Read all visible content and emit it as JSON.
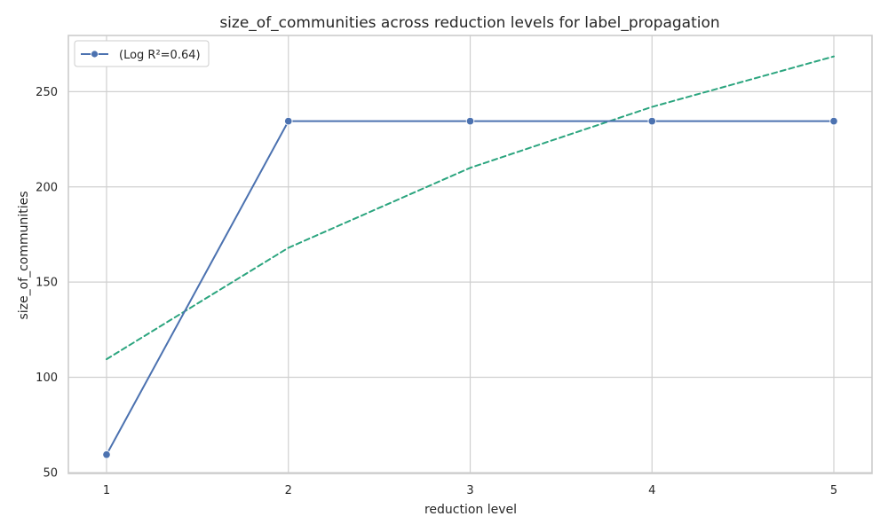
{
  "chart_data": {
    "type": "line",
    "title": "size_of_communities across reduction levels for label_propagation",
    "xlabel": "reduction level",
    "ylabel": "size_of_communities",
    "x": [
      1,
      2,
      3,
      4,
      5
    ],
    "xticks": [
      1,
      2,
      3,
      4,
      5
    ],
    "yticks": [
      50,
      100,
      150,
      200,
      250
    ],
    "xlim": [
      0.79,
      5.21
    ],
    "ylim": [
      49.5,
      279.5
    ],
    "grid": true,
    "legend_position": "top-left",
    "series": [
      {
        "name": "(Log R²=0.64)",
        "values": [
          59.4,
          234.5,
          234.5,
          234.5,
          234.5
        ],
        "style": "solid",
        "marker": "circle",
        "color": "#4c72b0"
      },
      {
        "name": "",
        "values": [
          109.5,
          168.0,
          210.0,
          242.0,
          268.5
        ],
        "style": "dashed",
        "marker": "none",
        "color": "#2ca57f"
      }
    ]
  },
  "colors": {
    "grid": "#d0d0d0",
    "frame": "#cccccc",
    "text": "#262626"
  }
}
